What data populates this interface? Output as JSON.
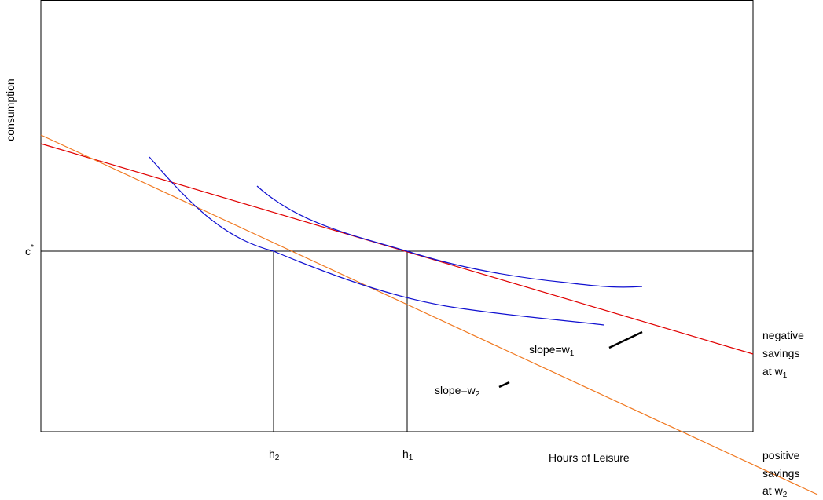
{
  "y_label": "consumption",
  "x_label": "Hours of Leisure",
  "c_star": {
    "text": "c",
    "sup": "*"
  },
  "h2": {
    "text": "h",
    "sub": "2"
  },
  "h1": {
    "text": "h",
    "sub": "1"
  },
  "slope_w1": {
    "text": "slope=w",
    "sub": "1"
  },
  "slope_w2": {
    "text": "slope=w",
    "sub": "2"
  },
  "negative_note": {
    "lines": [
      "negative",
      "savings",
      "at w"
    ],
    "sub": "1"
  },
  "positive_note": {
    "lines": [
      "positive",
      "savings",
      "at w"
    ],
    "sub": "2"
  }
}
